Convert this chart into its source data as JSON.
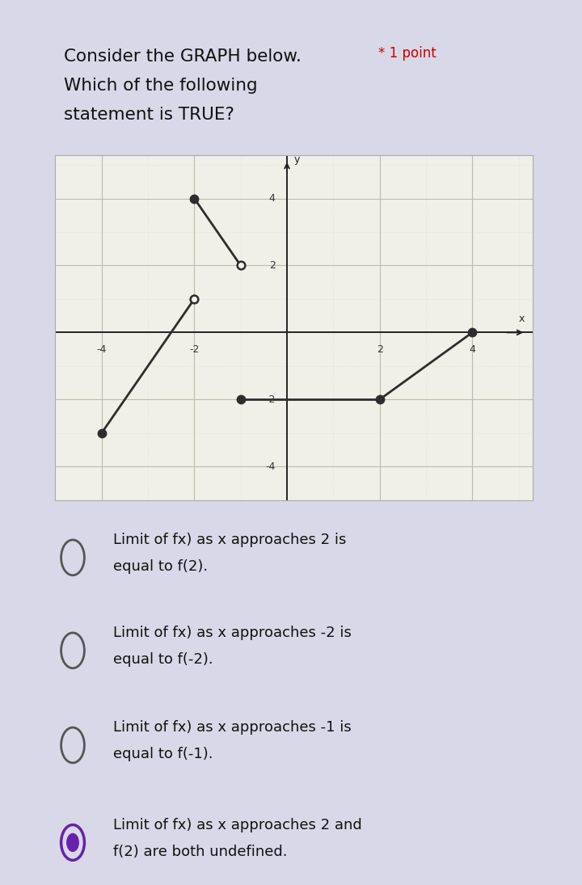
{
  "background_color": "#d8d8e8",
  "card_color": "#ffffff",
  "title_line1": "Consider the GRAPH below.",
  "title_star": "* 1 point",
  "title_line2": "Which of the following",
  "title_line3": "statement is TRUE?",
  "graph": {
    "xlim": [
      -5,
      5.3
    ],
    "ylim": [
      -5,
      5.3
    ],
    "xticks": [
      -4,
      -2,
      2,
      4
    ],
    "yticks": [
      -4,
      -2,
      2,
      4
    ],
    "segments": [
      {
        "x": [
          -4,
          -2
        ],
        "y": [
          -3,
          1
        ]
      },
      {
        "x": [
          -2,
          -1
        ],
        "y": [
          4,
          2
        ]
      },
      {
        "x": [
          -1,
          2
        ],
        "y": [
          -2,
          -2
        ]
      },
      {
        "x": [
          2,
          4
        ],
        "y": [
          -2,
          0
        ]
      }
    ],
    "open_circles": [
      [
        -2,
        1
      ],
      [
        -1,
        2
      ]
    ],
    "filled_circles": [
      [
        -4,
        -3
      ],
      [
        -2,
        4
      ],
      [
        -1,
        -2
      ],
      [
        2,
        -2
      ],
      [
        4,
        0
      ]
    ]
  },
  "options": [
    {
      "text1": "Limit of fx) as x approaches 2 is",
      "text2": "equal to f(2).",
      "selected": false
    },
    {
      "text1": "Limit of fx) as x approaches -2 is",
      "text2": "equal to f(-2).",
      "selected": false
    },
    {
      "text1": "Limit of fx) as x approaches -1 is",
      "text2": "equal to f(-1).",
      "selected": false
    },
    {
      "text1": "Limit of fx) as x approaches 2 and",
      "text2": "f(2) are both undefined.",
      "selected": true
    }
  ],
  "option_circle_color_unselected": "#555555",
  "option_circle_color_selected_outer": "#6622aa",
  "option_circle_color_selected_inner": "#6622aa",
  "option_text_color": "#111111",
  "graph_line_color": "#2d2d2d",
  "graph_bg": "#f0f0e8",
  "graph_grid_major_color": "#bbbbaa",
  "graph_grid_minor_color": "#ddddcc",
  "graph_axis_color": "#222222",
  "title_color": "#111111",
  "star_color": "#cc0000",
  "point_color": "#cc0000"
}
